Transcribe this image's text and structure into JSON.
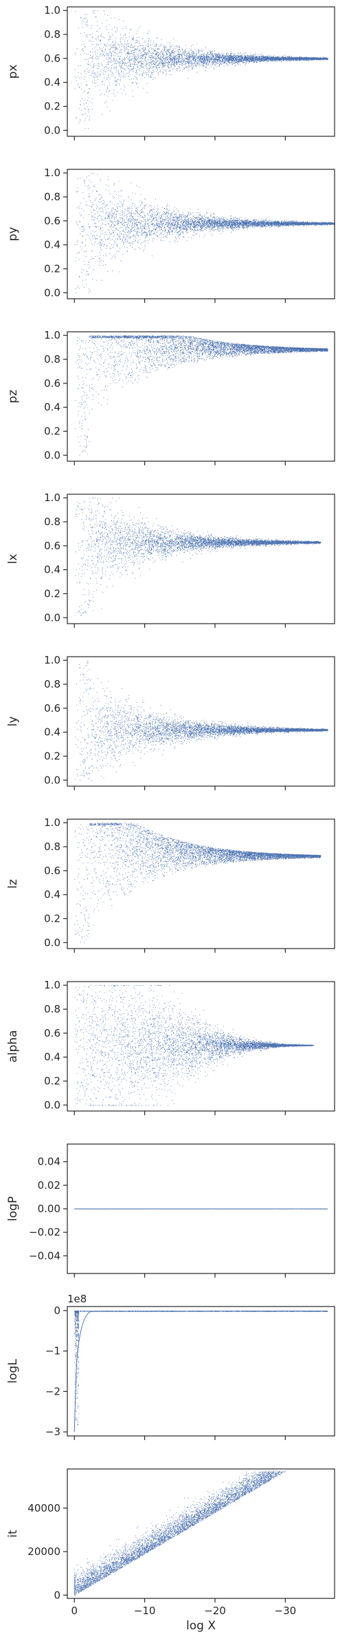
{
  "colors": {
    "points": "#4c72b0",
    "axes": "#262626",
    "background": "#ffffff"
  },
  "chart_data": [
    {
      "type": "scatter",
      "ylabel": "px",
      "xlim": [
        1,
        -37
      ],
      "ylim": [
        -0.05,
        1.03
      ],
      "yticks": [
        "0.0",
        "0.2",
        "0.4",
        "0.6",
        "0.8",
        "1.0"
      ],
      "ytick_values": [
        0,
        0.2,
        0.4,
        0.6,
        0.8,
        1.0
      ],
      "converge_to": 0.6,
      "x_end": -36,
      "pattern": "funnel",
      "show_xtick_labels": false
    },
    {
      "type": "scatter",
      "ylabel": "py",
      "xlim": [
        1,
        -37
      ],
      "ylim": [
        -0.05,
        1.03
      ],
      "yticks": [
        "0.0",
        "0.2",
        "0.4",
        "0.6",
        "0.8",
        "1.0"
      ],
      "ytick_values": [
        0,
        0.2,
        0.4,
        0.6,
        0.8,
        1.0
      ],
      "converge_to": 0.58,
      "x_end": -37,
      "pattern": "funnel",
      "show_xtick_labels": false
    },
    {
      "type": "scatter",
      "ylabel": "pz",
      "xlim": [
        1,
        -37
      ],
      "ylim": [
        -0.05,
        1.03
      ],
      "yticks": [
        "0.0",
        "0.2",
        "0.4",
        "0.6",
        "0.8",
        "1.0"
      ],
      "ytick_values": [
        0,
        0.2,
        0.4,
        0.6,
        0.8,
        1.0
      ],
      "converge_to": 0.88,
      "x_end": -36,
      "pattern": "funnel_high",
      "show_xtick_labels": false
    },
    {
      "type": "scatter",
      "ylabel": "lx",
      "xlim": [
        1,
        -37
      ],
      "ylim": [
        -0.05,
        1.03
      ],
      "yticks": [
        "0.0",
        "0.2",
        "0.4",
        "0.6",
        "0.8",
        "1.0"
      ],
      "ytick_values": [
        0,
        0.2,
        0.4,
        0.6,
        0.8,
        1.0
      ],
      "converge_to": 0.63,
      "x_end": -35,
      "pattern": "funnel",
      "show_xtick_labels": false
    },
    {
      "type": "scatter",
      "ylabel": "ly",
      "xlim": [
        1,
        -37
      ],
      "ylim": [
        -0.05,
        1.03
      ],
      "yticks": [
        "0.0",
        "0.2",
        "0.4",
        "0.6",
        "0.8",
        "1.0"
      ],
      "ytick_values": [
        0,
        0.2,
        0.4,
        0.6,
        0.8,
        1.0
      ],
      "converge_to": 0.42,
      "x_end": -36,
      "pattern": "funnel",
      "show_xtick_labels": false
    },
    {
      "type": "scatter",
      "ylabel": "lz",
      "xlim": [
        1,
        -37
      ],
      "ylim": [
        -0.05,
        1.03
      ],
      "yticks": [
        "0.0",
        "0.2",
        "0.4",
        "0.6",
        "0.8",
        "1.0"
      ],
      "ytick_values": [
        0,
        0.2,
        0.4,
        0.6,
        0.8,
        1.0
      ],
      "converge_to": 0.72,
      "x_end": -35,
      "pattern": "funnel_high",
      "show_xtick_labels": false
    },
    {
      "type": "scatter",
      "ylabel": "alpha",
      "xlim": [
        1,
        -37
      ],
      "ylim": [
        -0.05,
        1.03
      ],
      "yticks": [
        "0.0",
        "0.2",
        "0.4",
        "0.6",
        "0.8",
        "1.0"
      ],
      "ytick_values": [
        0,
        0.2,
        0.4,
        0.6,
        0.8,
        1.0
      ],
      "converge_to": 0.5,
      "x_end": -34,
      "pattern": "bulge",
      "show_xtick_labels": false
    },
    {
      "type": "scatter",
      "ylabel": "logP",
      "xlim": [
        1,
        -37
      ],
      "ylim": [
        -0.055,
        0.055
      ],
      "yticks": [
        "−0.04",
        "−0.02",
        "0.00",
        "0.02",
        "0.04"
      ],
      "ytick_values": [
        -0.04,
        -0.02,
        0,
        0.02,
        0.04
      ],
      "constant": 0,
      "x_end": -36,
      "pattern": "constant",
      "show_xtick_labels": false
    },
    {
      "type": "scatter",
      "ylabel": "logL",
      "offset_text": "1e8",
      "xlim": [
        1,
        -37
      ],
      "ylim": [
        -3.1,
        0.1
      ],
      "yticks": [
        "−3",
        "−2",
        "−1",
        "0"
      ],
      "ytick_values": [
        -3,
        -2,
        -1,
        0
      ],
      "x_end": -36,
      "pattern": "log_likelihood",
      "show_xtick_labels": false
    },
    {
      "type": "scatter",
      "ylabel": "it",
      "xlabel": "log X",
      "xlim": [
        1,
        -37
      ],
      "ylim": [
        -1500,
        58000
      ],
      "yticks": [
        "0",
        "20000",
        "40000"
      ],
      "ytick_values": [
        0,
        20000,
        40000
      ],
      "xticks": [
        "0",
        "−10",
        "−20",
        "−30"
      ],
      "xtick_values": [
        0,
        -10,
        -20,
        -30
      ],
      "max_it": 57000,
      "pattern": "iteration",
      "show_xtick_labels": true
    }
  ]
}
